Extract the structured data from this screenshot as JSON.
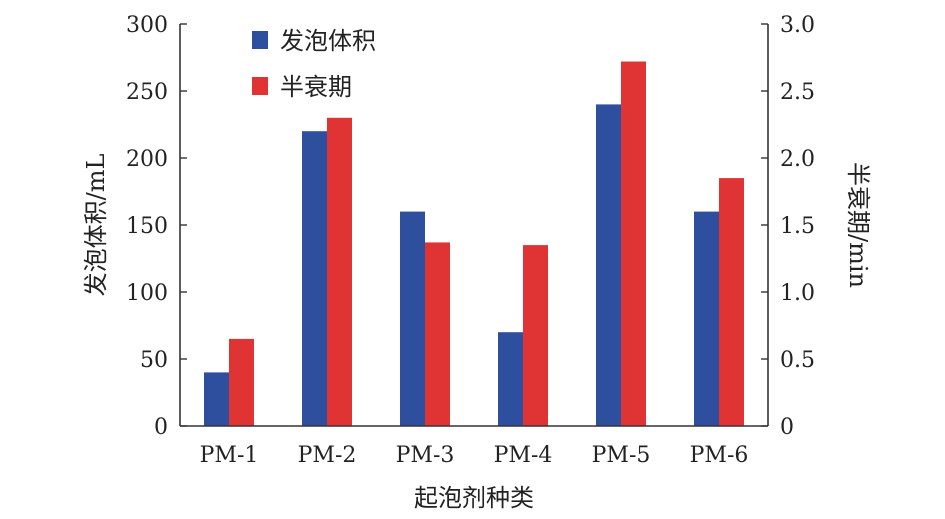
{
  "chart_data": {
    "type": "bar",
    "categories": [
      "PM-1",
      "PM-2",
      "PM-3",
      "PM-4",
      "PM-5",
      "PM-6"
    ],
    "series": [
      {
        "name": "发泡体积",
        "axis": "left",
        "color": "#2d4f9e",
        "values": [
          40,
          220,
          160,
          70,
          240,
          160
        ]
      },
      {
        "name": "半衰期",
        "axis": "right",
        "color": "#e03434",
        "values": [
          0.65,
          2.3,
          1.37,
          1.35,
          2.72,
          1.85
        ]
      }
    ],
    "xlabel": "起泡剂种类",
    "ylabel_left": "发泡体积/mL",
    "ylabel_right": "半衰期/min",
    "ylim_left": [
      0,
      300
    ],
    "ylim_right": [
      0,
      3.0
    ],
    "yticks_left": [
      "0",
      "50",
      "100",
      "150",
      "200",
      "250",
      "300"
    ],
    "yticks_right": [
      "0",
      "0.5",
      "1.0",
      "1.5",
      "2.0",
      "2.5",
      "3.0"
    ],
    "legend_position": "top-left",
    "grid": false
  }
}
